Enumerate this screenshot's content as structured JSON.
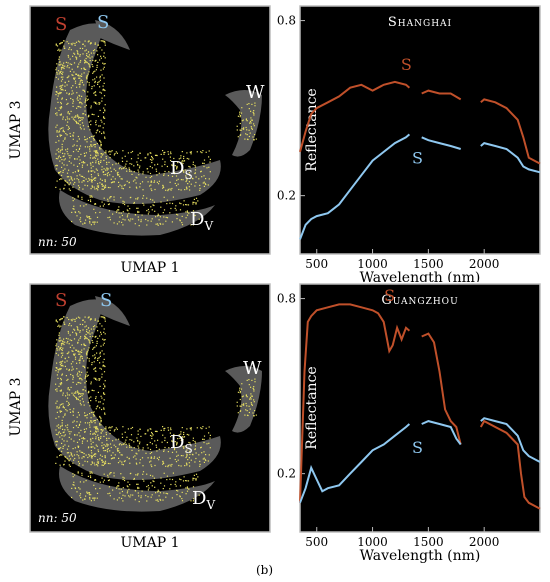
{
  "figure_label": "(b)",
  "umap": {
    "ylabel": "UMAP 3",
    "xlabel": "UMAP 1",
    "nn_label": "nn: 50",
    "cluster_labels": {
      "S_red": "S",
      "S_blue": "S",
      "W": "W",
      "D": "D",
      "Ds_sub": "S",
      "Dv_sub": "V"
    },
    "colors": {
      "background": "#000000",
      "cloud": "#5a5a5a",
      "points": "#e8e060",
      "edge": "#d01010"
    }
  },
  "chart_data": [
    {
      "type": "line",
      "title": "Shanghai",
      "xlabel": "Wavelength (nm)",
      "ylabel": "Reflectance",
      "xlim": [
        350,
        2500
      ],
      "x_ticks": [
        500,
        1000,
        1500,
        2000
      ],
      "y_ticks": [
        0.2,
        0.8
      ],
      "ylim": [
        0,
        0.85
      ],
      "gaps": [
        [
          1340,
          1430
        ],
        [
          1800,
          1960
        ]
      ],
      "series": [
        {
          "name": "S",
          "color": "#c0502a",
          "x": [
            350,
            400,
            450,
            500,
            600,
            700,
            800,
            900,
            1000,
            1100,
            1200,
            1300,
            1330,
            1440,
            1500,
            1600,
            1700,
            1790,
            1970,
            2000,
            2100,
            2200,
            2300,
            2350,
            2400,
            2500
          ],
          "y": [
            0.35,
            0.42,
            0.48,
            0.5,
            0.52,
            0.54,
            0.57,
            0.58,
            0.56,
            0.58,
            0.59,
            0.58,
            0.57,
            0.55,
            0.56,
            0.55,
            0.55,
            0.53,
            0.52,
            0.53,
            0.52,
            0.5,
            0.46,
            0.4,
            0.33,
            0.31
          ]
        },
        {
          "name": "S",
          "color": "#8fc8f0",
          "x": [
            350,
            400,
            450,
            500,
            600,
            700,
            800,
            900,
            1000,
            1100,
            1200,
            1300,
            1330,
            1440,
            1500,
            1600,
            1700,
            1790,
            1970,
            2000,
            2100,
            2200,
            2300,
            2350,
            2400,
            2500
          ],
          "y": [
            0.05,
            0.1,
            0.12,
            0.13,
            0.14,
            0.17,
            0.22,
            0.27,
            0.32,
            0.35,
            0.38,
            0.4,
            0.41,
            0.4,
            0.39,
            0.38,
            0.37,
            0.36,
            0.37,
            0.38,
            0.37,
            0.36,
            0.33,
            0.3,
            0.29,
            0.28
          ]
        }
      ],
      "series_labels": [
        "S",
        "S"
      ]
    },
    {
      "type": "line",
      "title": "Guangzhou",
      "xlabel": "Wavelength (nm)",
      "ylabel": "Reflectance",
      "xlim": [
        350,
        2500
      ],
      "x_ticks": [
        500,
        1000,
        1500,
        2000
      ],
      "y_ticks": [
        0.2,
        0.8
      ],
      "ylim": [
        0,
        0.85
      ],
      "gaps": [
        [
          1340,
          1430
        ],
        [
          1800,
          1960
        ]
      ],
      "series": [
        {
          "name": "S",
          "color": "#c0502a",
          "x": [
            350,
            390,
            420,
            450,
            500,
            600,
            700,
            800,
            900,
            1000,
            1050,
            1100,
            1150,
            1180,
            1220,
            1260,
            1300,
            1330,
            1440,
            1500,
            1550,
            1600,
            1650,
            1700,
            1750,
            1790,
            1970,
            2000,
            2100,
            2200,
            2300,
            2330,
            2360,
            2400,
            2500
          ],
          "y": [
            0.1,
            0.55,
            0.72,
            0.74,
            0.76,
            0.77,
            0.78,
            0.78,
            0.77,
            0.76,
            0.75,
            0.72,
            0.62,
            0.64,
            0.7,
            0.66,
            0.7,
            0.69,
            0.67,
            0.68,
            0.65,
            0.55,
            0.42,
            0.38,
            0.36,
            0.3,
            0.36,
            0.38,
            0.36,
            0.34,
            0.3,
            0.2,
            0.12,
            0.1,
            0.08
          ]
        },
        {
          "name": "S",
          "color": "#8fc8f0",
          "x": [
            350,
            400,
            450,
            500,
            550,
            600,
            700,
            800,
            900,
            1000,
            1100,
            1200,
            1300,
            1330,
            1440,
            1500,
            1600,
            1700,
            1750,
            1790,
            1970,
            2000,
            2100,
            2200,
            2300,
            2350,
            2400,
            2500
          ],
          "y": [
            0.1,
            0.15,
            0.22,
            0.18,
            0.14,
            0.15,
            0.16,
            0.2,
            0.24,
            0.28,
            0.3,
            0.33,
            0.36,
            0.37,
            0.37,
            0.38,
            0.37,
            0.36,
            0.32,
            0.3,
            0.38,
            0.39,
            0.38,
            0.37,
            0.33,
            0.28,
            0.26,
            0.24
          ]
        }
      ],
      "series_labels": [
        "S",
        "S"
      ]
    }
  ]
}
